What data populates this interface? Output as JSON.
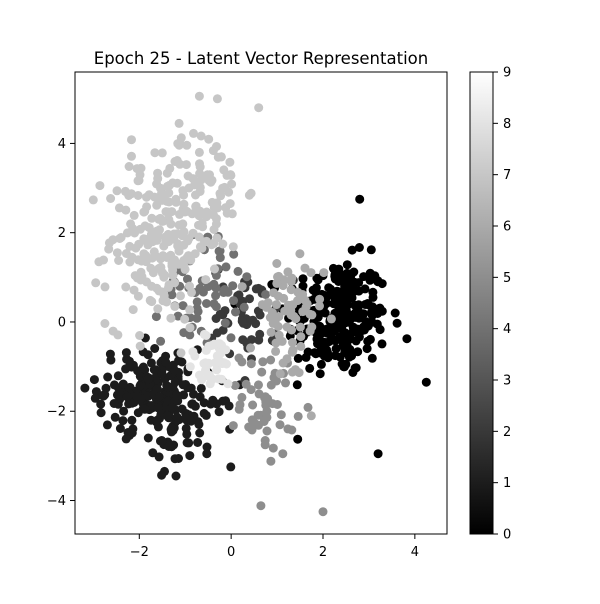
{
  "chart_data": {
    "type": "scatter",
    "title": "Epoch 25 - Latent Vector Representation",
    "xlabel": "",
    "ylabel": "",
    "xlim": [
      -3.4,
      4.7
    ],
    "ylim": [
      -4.75,
      5.6
    ],
    "xticks": [
      -2,
      0,
      2,
      4
    ],
    "yticks": [
      -4,
      -2,
      0,
      2,
      4
    ],
    "grid": false,
    "colormap": "gray",
    "colorbar": {
      "range": [
        0,
        9
      ],
      "ticks": [
        0,
        1,
        2,
        3,
        4,
        5,
        6,
        7,
        8,
        9
      ]
    },
    "clusters": [
      {
        "label": 0,
        "color": "#000000",
        "center": [
          2.3,
          0.1
        ],
        "spread": [
          0.55,
          0.65
        ],
        "count": 260
      },
      {
        "label": 1,
        "color": "#1c1c1c",
        "center": [
          -1.8,
          -1.5
        ],
        "spread": [
          0.55,
          0.45
        ],
        "count": 160
      },
      {
        "label": 1,
        "color": "#1c1c1c",
        "center": [
          -1.0,
          -2.3
        ],
        "spread": [
          0.55,
          0.45
        ],
        "count": 80
      },
      {
        "label": 2,
        "color": "#393939",
        "center": [
          0.3,
          0.2
        ],
        "spread": [
          0.35,
          0.55
        ],
        "count": 50
      },
      {
        "label": 4,
        "color": "#717171",
        "center": [
          -0.6,
          0.7
        ],
        "spread": [
          0.45,
          0.6
        ],
        "count": 60
      },
      {
        "label": 5,
        "color": "#8e8e8e",
        "center": [
          0.8,
          -1.8
        ],
        "spread": [
          0.3,
          0.6
        ],
        "count": 55
      },
      {
        "label": 6,
        "color": "#aaaaaa",
        "center": [
          1.2,
          0.0
        ],
        "spread": [
          0.4,
          0.7
        ],
        "count": 70
      },
      {
        "label": 7,
        "color": "#c6c6c6",
        "center": [
          -1.6,
          1.8
        ],
        "spread": [
          0.55,
          0.95
        ],
        "count": 200
      },
      {
        "label": 7,
        "color": "#c6c6c6",
        "center": [
          -0.6,
          3.0
        ],
        "spread": [
          0.45,
          0.7
        ],
        "count": 90
      },
      {
        "label": 8,
        "color": "#e3e3e3",
        "center": [
          -0.4,
          -0.9
        ],
        "spread": [
          0.3,
          0.3
        ],
        "count": 40
      }
    ],
    "outliers": [
      {
        "x": 2.0,
        "y": -4.25,
        "label": 5
      },
      {
        "x": -0.3,
        "y": 5.0,
        "label": 7
      },
      {
        "x": 0.6,
        "y": 4.8,
        "label": 7
      },
      {
        "x": 4.25,
        "y": -1.35,
        "label": 0
      },
      {
        "x": 3.2,
        "y": -2.95,
        "label": 0
      },
      {
        "x": -1.2,
        "y": -3.45,
        "label": 1
      },
      {
        "x": 2.8,
        "y": 2.75,
        "label": 0
      }
    ]
  }
}
